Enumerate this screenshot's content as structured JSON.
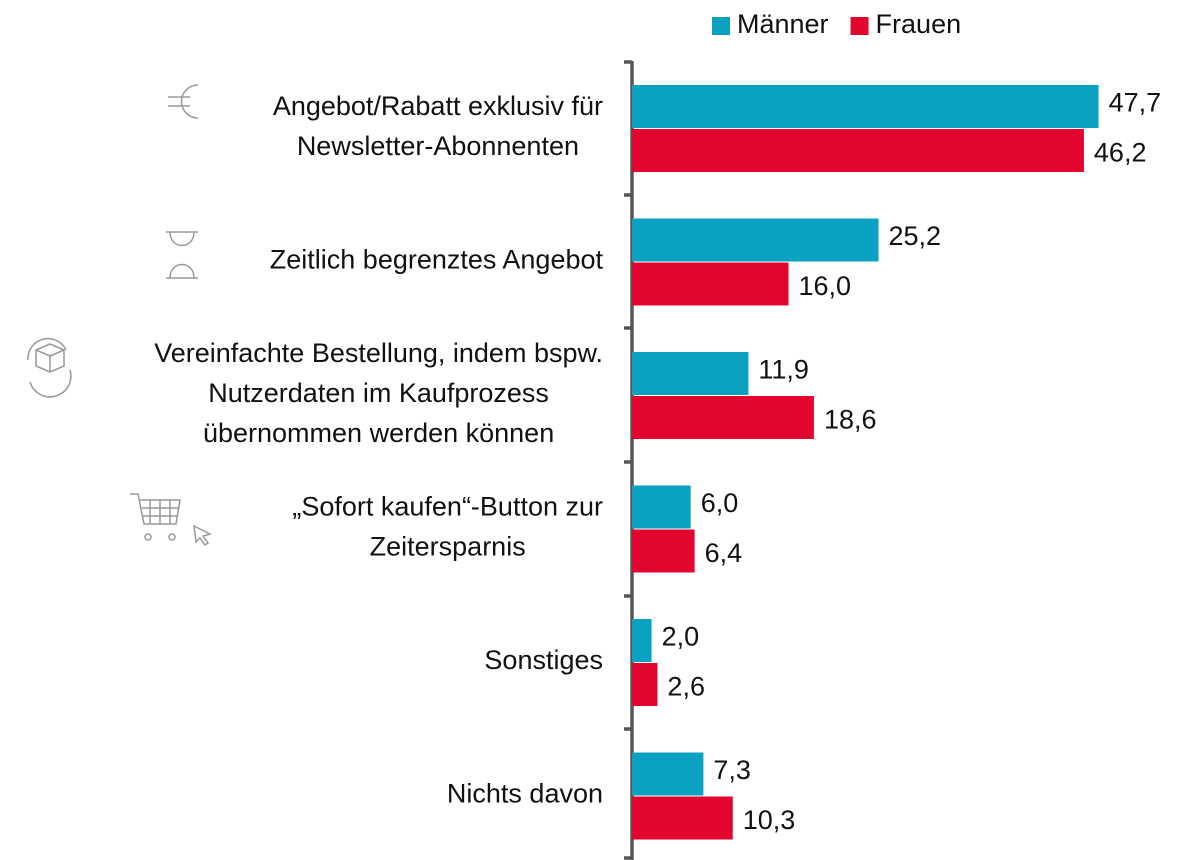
{
  "chart_data": {
    "type": "hbar",
    "categories": [
      "Angebot/Rabatt exklusiv für\nNewsletter-Abonnenten",
      "Zeitlich begrenztes Angebot",
      "Vereinfachte Bestellung, indem bspw.\nNutzerdaten im Kaufprozess\nübernommen werden können",
      "„Sofort kaufen“-Button zur\nZeitersparnis",
      "Sonstiges",
      "Nichts davon"
    ],
    "series": [
      {
        "name": "Männer",
        "color": "#0aa2c0",
        "values": [
          47.7,
          25.2,
          11.9,
          6.0,
          2.0,
          7.3
        ],
        "value_labels": [
          "47,7",
          "25,2",
          "11,9",
          "6,0",
          "2,0",
          "7,3"
        ]
      },
      {
        "name": "Frauen",
        "color": "#e2062f",
        "values": [
          46.2,
          16.0,
          18.6,
          6.4,
          2.6,
          10.3
        ],
        "value_labels": [
          "46,2",
          "16,0",
          "18,6",
          "6,4",
          "2,6",
          "10,3"
        ]
      }
    ],
    "xlim": [
      0,
      55
    ],
    "legend": "top"
  }
}
